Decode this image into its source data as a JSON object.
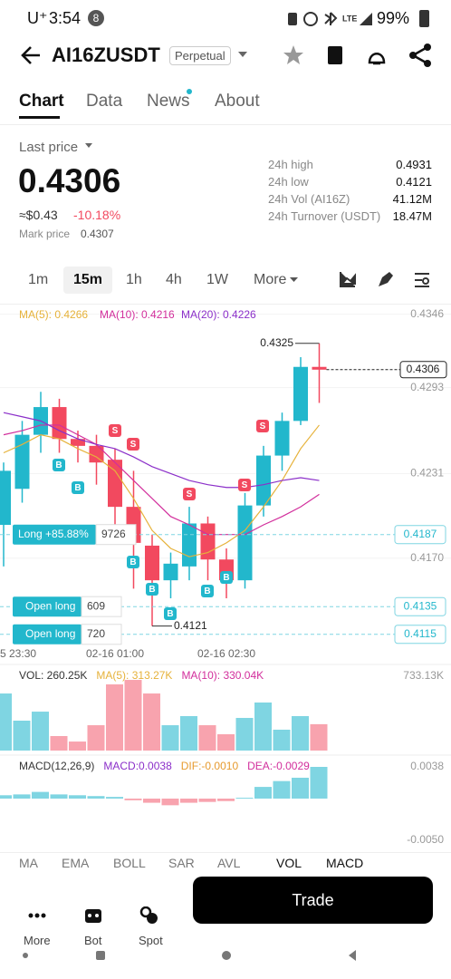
{
  "status_bar": {
    "carrier": "U⁺",
    "time": "3:54",
    "badge": "8",
    "battery": "99%"
  },
  "header": {
    "symbol": "AI16ZUSDT",
    "tag": "Perpetual"
  },
  "tabs": [
    "Chart",
    "Data",
    "News",
    "About"
  ],
  "price": {
    "last_label": "Last price",
    "last": "0.4306",
    "fiat": "≈$0.43",
    "change": "-10.18%",
    "mark_label": "Mark price",
    "mark": "0.4307"
  },
  "stats": [
    [
      "24h high",
      "0.4931"
    ],
    [
      "24h low",
      "0.4121"
    ],
    [
      "24h Vol (AI16Z)",
      "41.12M"
    ],
    [
      "24h Turnover (USDT)",
      "18.47M"
    ]
  ],
  "intervals": [
    "1m",
    "15m",
    "1h",
    "4h",
    "1W",
    "More"
  ],
  "chart_data": [
    {
      "type": "candlestick",
      "x": [
        "5 23:30",
        null,
        null,
        null,
        null,
        null,
        "02-16 01:00",
        null,
        null,
        null,
        null,
        null,
        "02-16 02:30",
        null,
        null,
        null,
        null,
        null
      ],
      "open": [
        0.4194,
        0.422,
        0.4259,
        0.4279,
        0.4256,
        0.4251,
        0.4241,
        0.4207,
        0.4179,
        0.4154,
        0.4164,
        0.4195,
        0.4169,
        0.4154,
        0.4208,
        0.4244,
        0.4269,
        0.4308
      ],
      "high": [
        0.4239,
        0.4269,
        0.429,
        0.4285,
        0.4262,
        0.4259,
        0.4249,
        0.4233,
        0.4187,
        0.4174,
        0.4207,
        0.42,
        0.4177,
        0.4217,
        0.4251,
        0.4275,
        0.4315,
        0.4325
      ],
      "low": [
        0.4164,
        0.421,
        0.4246,
        0.4246,
        0.4239,
        0.4223,
        0.4194,
        0.4148,
        0.4121,
        0.4141,
        0.4154,
        0.4154,
        0.4141,
        0.4148,
        0.42,
        0.4233,
        0.4266,
        0.4282
      ],
      "close": [
        0.4233,
        0.4259,
        0.4279,
        0.4256,
        0.4251,
        0.4239,
        0.4207,
        0.4181,
        0.4154,
        0.4166,
        0.4195,
        0.4169,
        0.4154,
        0.4208,
        0.4244,
        0.4269,
        0.4308,
        0.4306
      ],
      "up_color": "#22b7cc",
      "down_color": "#f2495f",
      "series": [
        {
          "name": "MA(5): 0.4266",
          "color": "#e6b23a",
          "values": [
            0.4246,
            0.4252,
            0.4259,
            0.4256,
            0.4249,
            0.4243,
            0.4233,
            0.4213,
            0.419,
            0.4177,
            0.4171,
            0.4174,
            0.4181,
            0.419,
            0.4207,
            0.4226,
            0.4249,
            0.4266
          ]
        },
        {
          "name": "MA(10): 0.4216",
          "color": "#d22f9c",
          "values": [
            0.4259,
            0.4262,
            0.4266,
            0.4266,
            0.4259,
            0.4252,
            0.4239,
            0.4226,
            0.4213,
            0.42,
            0.4194,
            0.4187,
            0.4187,
            0.4187,
            0.4194,
            0.42,
            0.4207,
            0.4216
          ]
        },
        {
          "name": "MA(20): 0.4226",
          "color": "#8b2fc9",
          "values": [
            0.4275,
            0.4272,
            0.4269,
            0.4262,
            0.4256,
            0.4252,
            0.4249,
            0.4243,
            0.4236,
            0.4231,
            0.4226,
            0.4223,
            0.4221,
            0.4221,
            0.4223,
            0.4226,
            0.4228,
            0.4226
          ]
        }
      ],
      "ylim": [
        0.4107,
        0.4351
      ],
      "yticks": [
        0.4346,
        0.4293,
        0.4231,
        {
          "value": 0.417,
          "label": "0.4170"
        }
      ],
      "grid": true,
      "annotations": {
        "high": 0.4325,
        "low": 0.4121,
        "last": 0.4306
      },
      "positions": [
        {
          "label": "Long +85.88%",
          "qty": 9726,
          "price": 0.4187
        },
        {
          "label": "Open long",
          "qty": 609,
          "price": 0.4135
        },
        {
          "label": "Open long",
          "qty": 720,
          "price": 0.4115
        }
      ],
      "signals": [
        "S",
        "S",
        "B",
        "B",
        "S",
        "S",
        "S",
        "B",
        "B",
        "B",
        "B",
        "B"
      ]
    },
    {
      "type": "bar",
      "legend": [
        {
          "text": "VOL: 260.25K",
          "color": "#333333"
        },
        {
          "text": "MA(5): 313.27K",
          "color": "#e6b23a"
        },
        {
          "text": "MA(10): 330.04K",
          "color": "#d22f9c"
        }
      ],
      "values": [
        563,
        295,
        384,
        143,
        89,
        250,
        653,
        697,
        563,
        250,
        340,
        250,
        161,
        322,
        474,
        206,
        340,
        260.25
      ],
      "up_color": "#7fd5e2",
      "down_color": "#f8a3ae",
      "ylim": [
        0,
        733.13
      ],
      "yticks": [
        {
          "value": 733.13,
          "label": "733.13K"
        }
      ]
    },
    {
      "type": "bar",
      "legend": [
        {
          "text": "MACD(12,26,9)",
          "color": "#333333"
        },
        {
          "text": "MACD:0.0038",
          "color": "#8b2fc9"
        },
        {
          "text": "DIF:-0.0010",
          "color": "#e69a2e"
        },
        {
          "text": "DEA:-0.0029",
          "color": "#d22f9c"
        }
      ],
      "values": [
        0.0004,
        0.0005,
        0.0008,
        0.0005,
        0.0004,
        0.0003,
        0.0002,
        -0.0002,
        -0.0005,
        -0.0008,
        -0.0005,
        -0.0004,
        -0.0003,
        0.0001,
        0.0014,
        0.0021,
        0.0025,
        0.0038
      ],
      "up_color": "#7fd5e2",
      "down_color": "#f8a3ae",
      "ylim": [
        -0.005,
        0.0038
      ],
      "yticks": [
        0.0038,
        {
          "value": -0.005,
          "label": "-0.0050"
        }
      ]
    }
  ],
  "indicators": [
    "MA",
    "EMA",
    "BOLL",
    "SAR",
    "AVL",
    "VOL",
    "MACD"
  ],
  "nav": [
    "More",
    "Bot",
    "Spot"
  ],
  "trade": "Trade"
}
